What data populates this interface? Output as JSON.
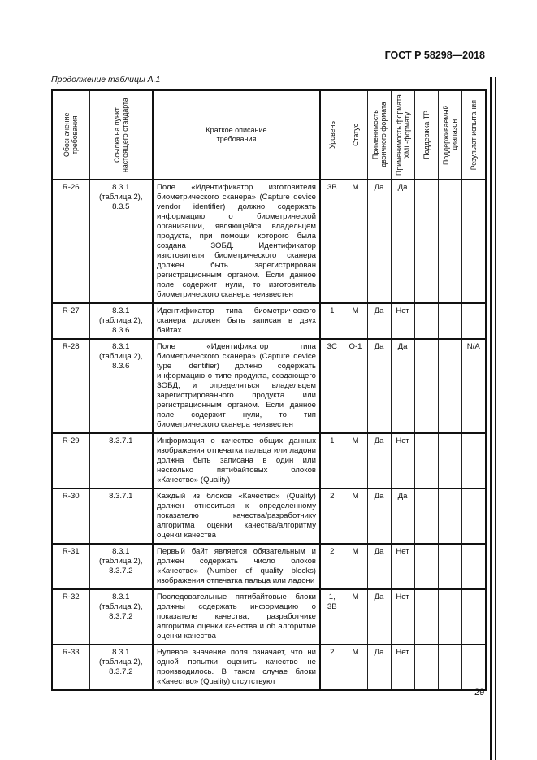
{
  "header": {
    "standard": "ГОСТ Р 58298—2018",
    "caption": "Продолжение таблицы А.1"
  },
  "columns": [
    "Обозначение требования",
    "Ссылка на пункт настоящего стандарта",
    "Краткое описание требования",
    "Уровень",
    "Статус",
    "Применимость двоичного формата",
    "Применимость формата XML-формату",
    "Поддержка ТР",
    "Поддерживаемый диапазон",
    "Результат испытания"
  ],
  "rows": [
    {
      "id": "R-26",
      "ref": "8.3.1 (таблица 2), 8.3.5",
      "desc": "Поле «Идентификатор изготовителя биометрического сканера» (Capture device vendor identifier) должно содержать информацию о биометрической организации, являющейся владельцем продукта, при помощи которого была создана ЗОБД. Идентификатор изготовителя биометрического сканера должен быть зарегистрирован регистрационным органом. Если данное поле содержит нули, то изготовитель биометрического сканера неизвестен",
      "level": "3В",
      "status": "М",
      "binary": "Да",
      "xml": "Да",
      "tr": "",
      "range": "",
      "result": ""
    },
    {
      "id": "R-27",
      "ref": "8.3.1 (таблица 2), 8.3.6",
      "desc": "Идентификатор типа биометрического сканера должен быть записан в двух байтах",
      "level": "1",
      "status": "М",
      "binary": "Да",
      "xml": "Нет",
      "tr": "",
      "range": "",
      "result": ""
    },
    {
      "id": "R-28",
      "ref": "8.3.1 (таблица 2), 8.3.6",
      "desc": "Поле «Идентификатор типа биометрического сканера» (Capture device type identifier) должно содержать информацию о типе продукта, создающего ЗОБД, и определяться владельцем зарегистрированного продукта или регистрационным органом. Если данное поле содержит нули, то тип биометрического сканера неизвестен",
      "level": "3С",
      "status": "О-1",
      "binary": "Да",
      "xml": "Да",
      "tr": "",
      "range": "",
      "result": "N/A"
    },
    {
      "id": "R-29",
      "ref": "8.3.7.1",
      "desc": "Информация о качестве общих данных изображения отпечатка пальца или ладони должна быть записана в один или несколько пятибайтовых блоков «Качество» (Quality)",
      "level": "1",
      "status": "М",
      "binary": "Да",
      "xml": "Нет",
      "tr": "",
      "range": "",
      "result": ""
    },
    {
      "id": "R-30",
      "ref": "8.3.7.1",
      "desc": "Каждый из блоков «Качество» (Quality) должен относиться к определенному показателю качества/разработчику алгоритма оценки качества/алгоритму оценки качества",
      "level": "2",
      "status": "М",
      "binary": "Да",
      "xml": "Да",
      "tr": "",
      "range": "",
      "result": ""
    },
    {
      "id": "R-31",
      "ref": "8.3.1 (таблица 2), 8.3.7.2",
      "desc": "Первый байт является обязательным и должен содержать число блоков «Качество» (Number of quality blocks) изображения отпечатка пальца или ладони",
      "level": "2",
      "status": "М",
      "binary": "Да",
      "xml": "Нет",
      "tr": "",
      "range": "",
      "result": ""
    },
    {
      "id": "R-32",
      "ref": "8.3.1 (таблица 2), 8.3.7.2",
      "desc": "Последовательные пятибайтовые блоки должны содержать информацию о показателе качества, разработчике алгоритма оценки качества и об алгоритме оценки качества",
      "level": "1, 3В",
      "status": "М",
      "binary": "Да",
      "xml": "Нет",
      "tr": "",
      "range": "",
      "result": ""
    },
    {
      "id": "R-33",
      "ref": "8.3.1 (таблица 2), 8.3.7.2",
      "desc": "Нулевое значение поля означает, что ни одной попытки оценить качество не производилось. В таком случае блоки «Качество» (Quality) отсутствуют",
      "level": "2",
      "status": "М",
      "binary": "Да",
      "xml": "Нет",
      "tr": "",
      "range": "",
      "result": ""
    }
  ],
  "page_number": "29"
}
